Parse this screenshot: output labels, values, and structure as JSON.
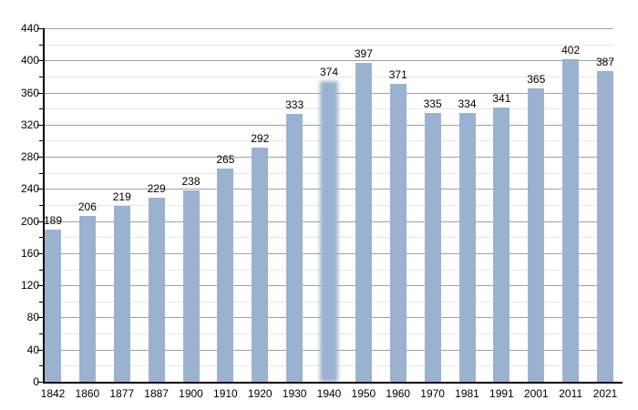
{
  "chart_data": {
    "type": "bar",
    "title": "",
    "xlabel": "",
    "ylabel": "",
    "categories": [
      "1842",
      "1860",
      "1877",
      "1887",
      "1900",
      "1910",
      "1920",
      "1930",
      "1940",
      "1950",
      "1960",
      "1970",
      "1981",
      "1991",
      "2001",
      "2011",
      "2021"
    ],
    "values": [
      189,
      206,
      219,
      229,
      238,
      265,
      292,
      333,
      374,
      397,
      371,
      335,
      334,
      341,
      365,
      402,
      387
    ],
    "ylim": [
      0,
      440
    ],
    "ytick_major_step": 40,
    "ytick_minor_step": 20,
    "grid": "horizontal-major-and-minor",
    "legend": "none",
    "estimated_bar_category": "1940",
    "estimated_bar_style": "faded-blurred-edges"
  },
  "axis": {
    "y_tick_labels": [
      "440",
      "400",
      "360",
      "320",
      "280",
      "240",
      "200",
      "160",
      "120",
      "80",
      "40",
      "0"
    ]
  },
  "colors": {
    "bar": "#9ab2d0",
    "grid_major": "#a0a0a0",
    "grid_minor": "#e7e7e7",
    "axis": "#000000",
    "text": "#000000",
    "background": "#ffffff"
  }
}
